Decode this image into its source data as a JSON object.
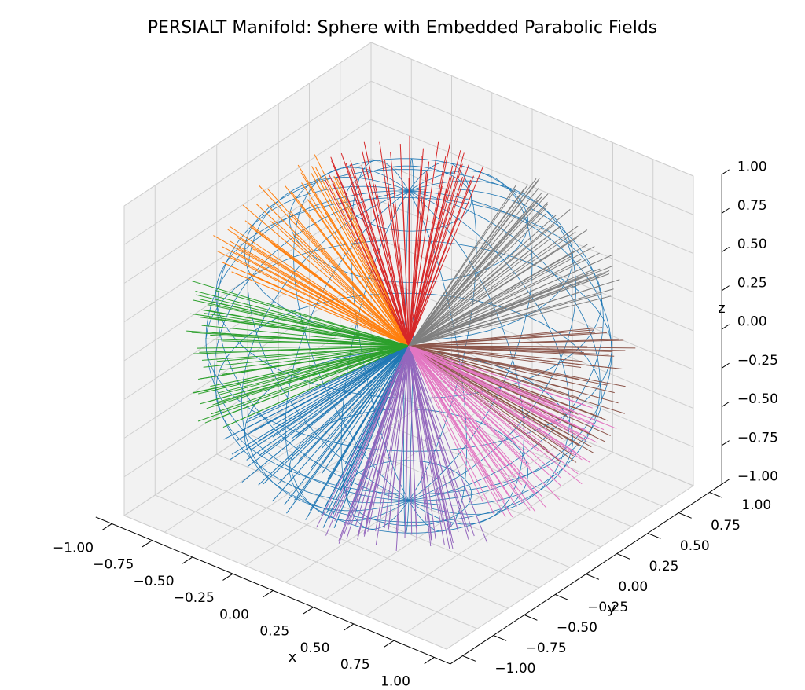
{
  "chart_data": {
    "type": "3d-wireframe-sphere-with-vector-fields",
    "title": "PERSIALT Manifold: Sphere with Embedded Parabolic Fields",
    "xlabel": "x",
    "ylabel": "y",
    "zlabel": "z",
    "xlim": [
      -1.0,
      1.0
    ],
    "ylim": [
      -1.0,
      1.0
    ],
    "zlim": [
      -1.0,
      1.0
    ],
    "x_ticks": [
      "−1.00",
      "−0.75",
      "−0.50",
      "−0.25",
      "0.00",
      "0.25",
      "0.50",
      "0.75",
      "1.00"
    ],
    "y_ticks": [
      "−1.00",
      "−0.75",
      "−0.50",
      "−0.25",
      "0.00",
      "0.25",
      "0.50",
      "0.75",
      "1.00"
    ],
    "z_ticks": [
      "−1.00",
      "−0.75",
      "−0.50",
      "−0.25",
      "0.00",
      "0.25",
      "0.50",
      "0.75",
      "1.00"
    ],
    "grid": true,
    "sphere": {
      "radius": 1.0,
      "wireframe_color": "#1f77b4"
    },
    "fields": [
      {
        "color": "#1f77b4",
        "dir": [
          0.0,
          -1.0,
          -0.35
        ]
      },
      {
        "color": "#ff7f0e",
        "dir": [
          -0.9,
          0.1,
          0.4
        ]
      },
      {
        "color": "#2ca02c",
        "dir": [
          -0.4,
          -0.3,
          -0.05
        ]
      },
      {
        "color": "#d62728",
        "dir": [
          -0.2,
          0.2,
          1.0
        ]
      },
      {
        "color": "#9467bd",
        "dir": [
          0.4,
          -0.6,
          -1.0
        ]
      },
      {
        "color": "#8c564b",
        "dir": [
          0.5,
          0.1,
          0.0
        ]
      },
      {
        "color": "#e377c2",
        "dir": [
          0.95,
          -0.1,
          -0.3
        ]
      },
      {
        "color": "#7f7f7f",
        "dir": [
          0.5,
          0.8,
          0.6
        ]
      }
    ]
  }
}
